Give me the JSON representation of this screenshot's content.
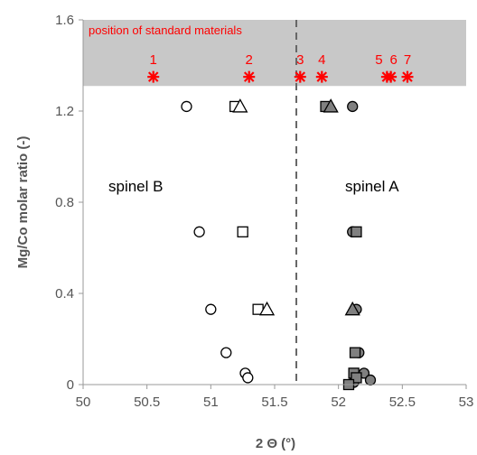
{
  "chart_data": {
    "type": "scatter",
    "xlabel": "2 Θ (°)",
    "ylabel": "Mg/Co molar ratio (-)",
    "xlim": [
      50,
      53
    ],
    "ylim": [
      0,
      1.6
    ],
    "x_ticks": [
      "50",
      "50.5",
      "51",
      "51.5",
      "52",
      "52.5",
      "53"
    ],
    "y_ticks": [
      "0",
      "0.4",
      "0.8",
      "1.2",
      "1.6"
    ],
    "grid": false,
    "divider_x": 51.67,
    "band_ylim": [
      1.31,
      1.6
    ],
    "band_color": "#c8c8c8",
    "annotations": {
      "standards_title": "position of standard materials",
      "spinel_b": "spinel B",
      "spinel_a": "spinel A"
    },
    "standard_positions": [
      {
        "label": "1",
        "x": 50.55
      },
      {
        "label": "2",
        "x": 51.3
      },
      {
        "label": "3",
        "x": 51.7
      },
      {
        "label": "4",
        "x": 51.87
      },
      {
        "label": "5",
        "x": 52.38
      },
      {
        "label": "6",
        "x": 52.41
      },
      {
        "label": "7",
        "x": 52.54
      }
    ],
    "standard_y": 1.35,
    "marker_color": "#ff0000",
    "series": [
      {
        "marker": "circle",
        "fill": "#ffffff",
        "points": [
          [
            50.81,
            1.22
          ],
          [
            50.91,
            0.67
          ],
          [
            51.0,
            0.33
          ],
          [
            51.12,
            0.14
          ],
          [
            51.27,
            0.05
          ],
          [
            51.29,
            0.03
          ]
        ]
      },
      {
        "marker": "square",
        "fill": "#ffffff",
        "points": [
          [
            51.19,
            1.22
          ],
          [
            51.25,
            0.67
          ],
          [
            51.37,
            0.33
          ]
        ]
      },
      {
        "marker": "triangle",
        "fill": "#ffffff",
        "points": [
          [
            51.23,
            1.22
          ],
          [
            51.44,
            0.33
          ]
        ]
      },
      {
        "marker": "circle",
        "fill": "#808080",
        "points": [
          [
            52.11,
            1.22
          ],
          [
            52.11,
            0.67
          ],
          [
            52.14,
            0.33
          ],
          [
            52.16,
            0.14
          ],
          [
            52.2,
            0.05
          ],
          [
            52.14,
            0.03
          ],
          [
            52.25,
            0.02
          ],
          [
            52.12,
            0.01
          ]
        ]
      },
      {
        "marker": "square",
        "fill": "#808080",
        "points": [
          [
            51.9,
            1.22
          ],
          [
            52.14,
            0.67
          ],
          [
            52.13,
            0.14
          ],
          [
            52.12,
            0.05
          ],
          [
            52.14,
            0.03
          ],
          [
            52.08,
            0.0
          ]
        ]
      },
      {
        "marker": "triangle",
        "fill": "#808080",
        "points": [
          [
            51.94,
            1.22
          ],
          [
            52.11,
            0.33
          ]
        ]
      }
    ]
  }
}
